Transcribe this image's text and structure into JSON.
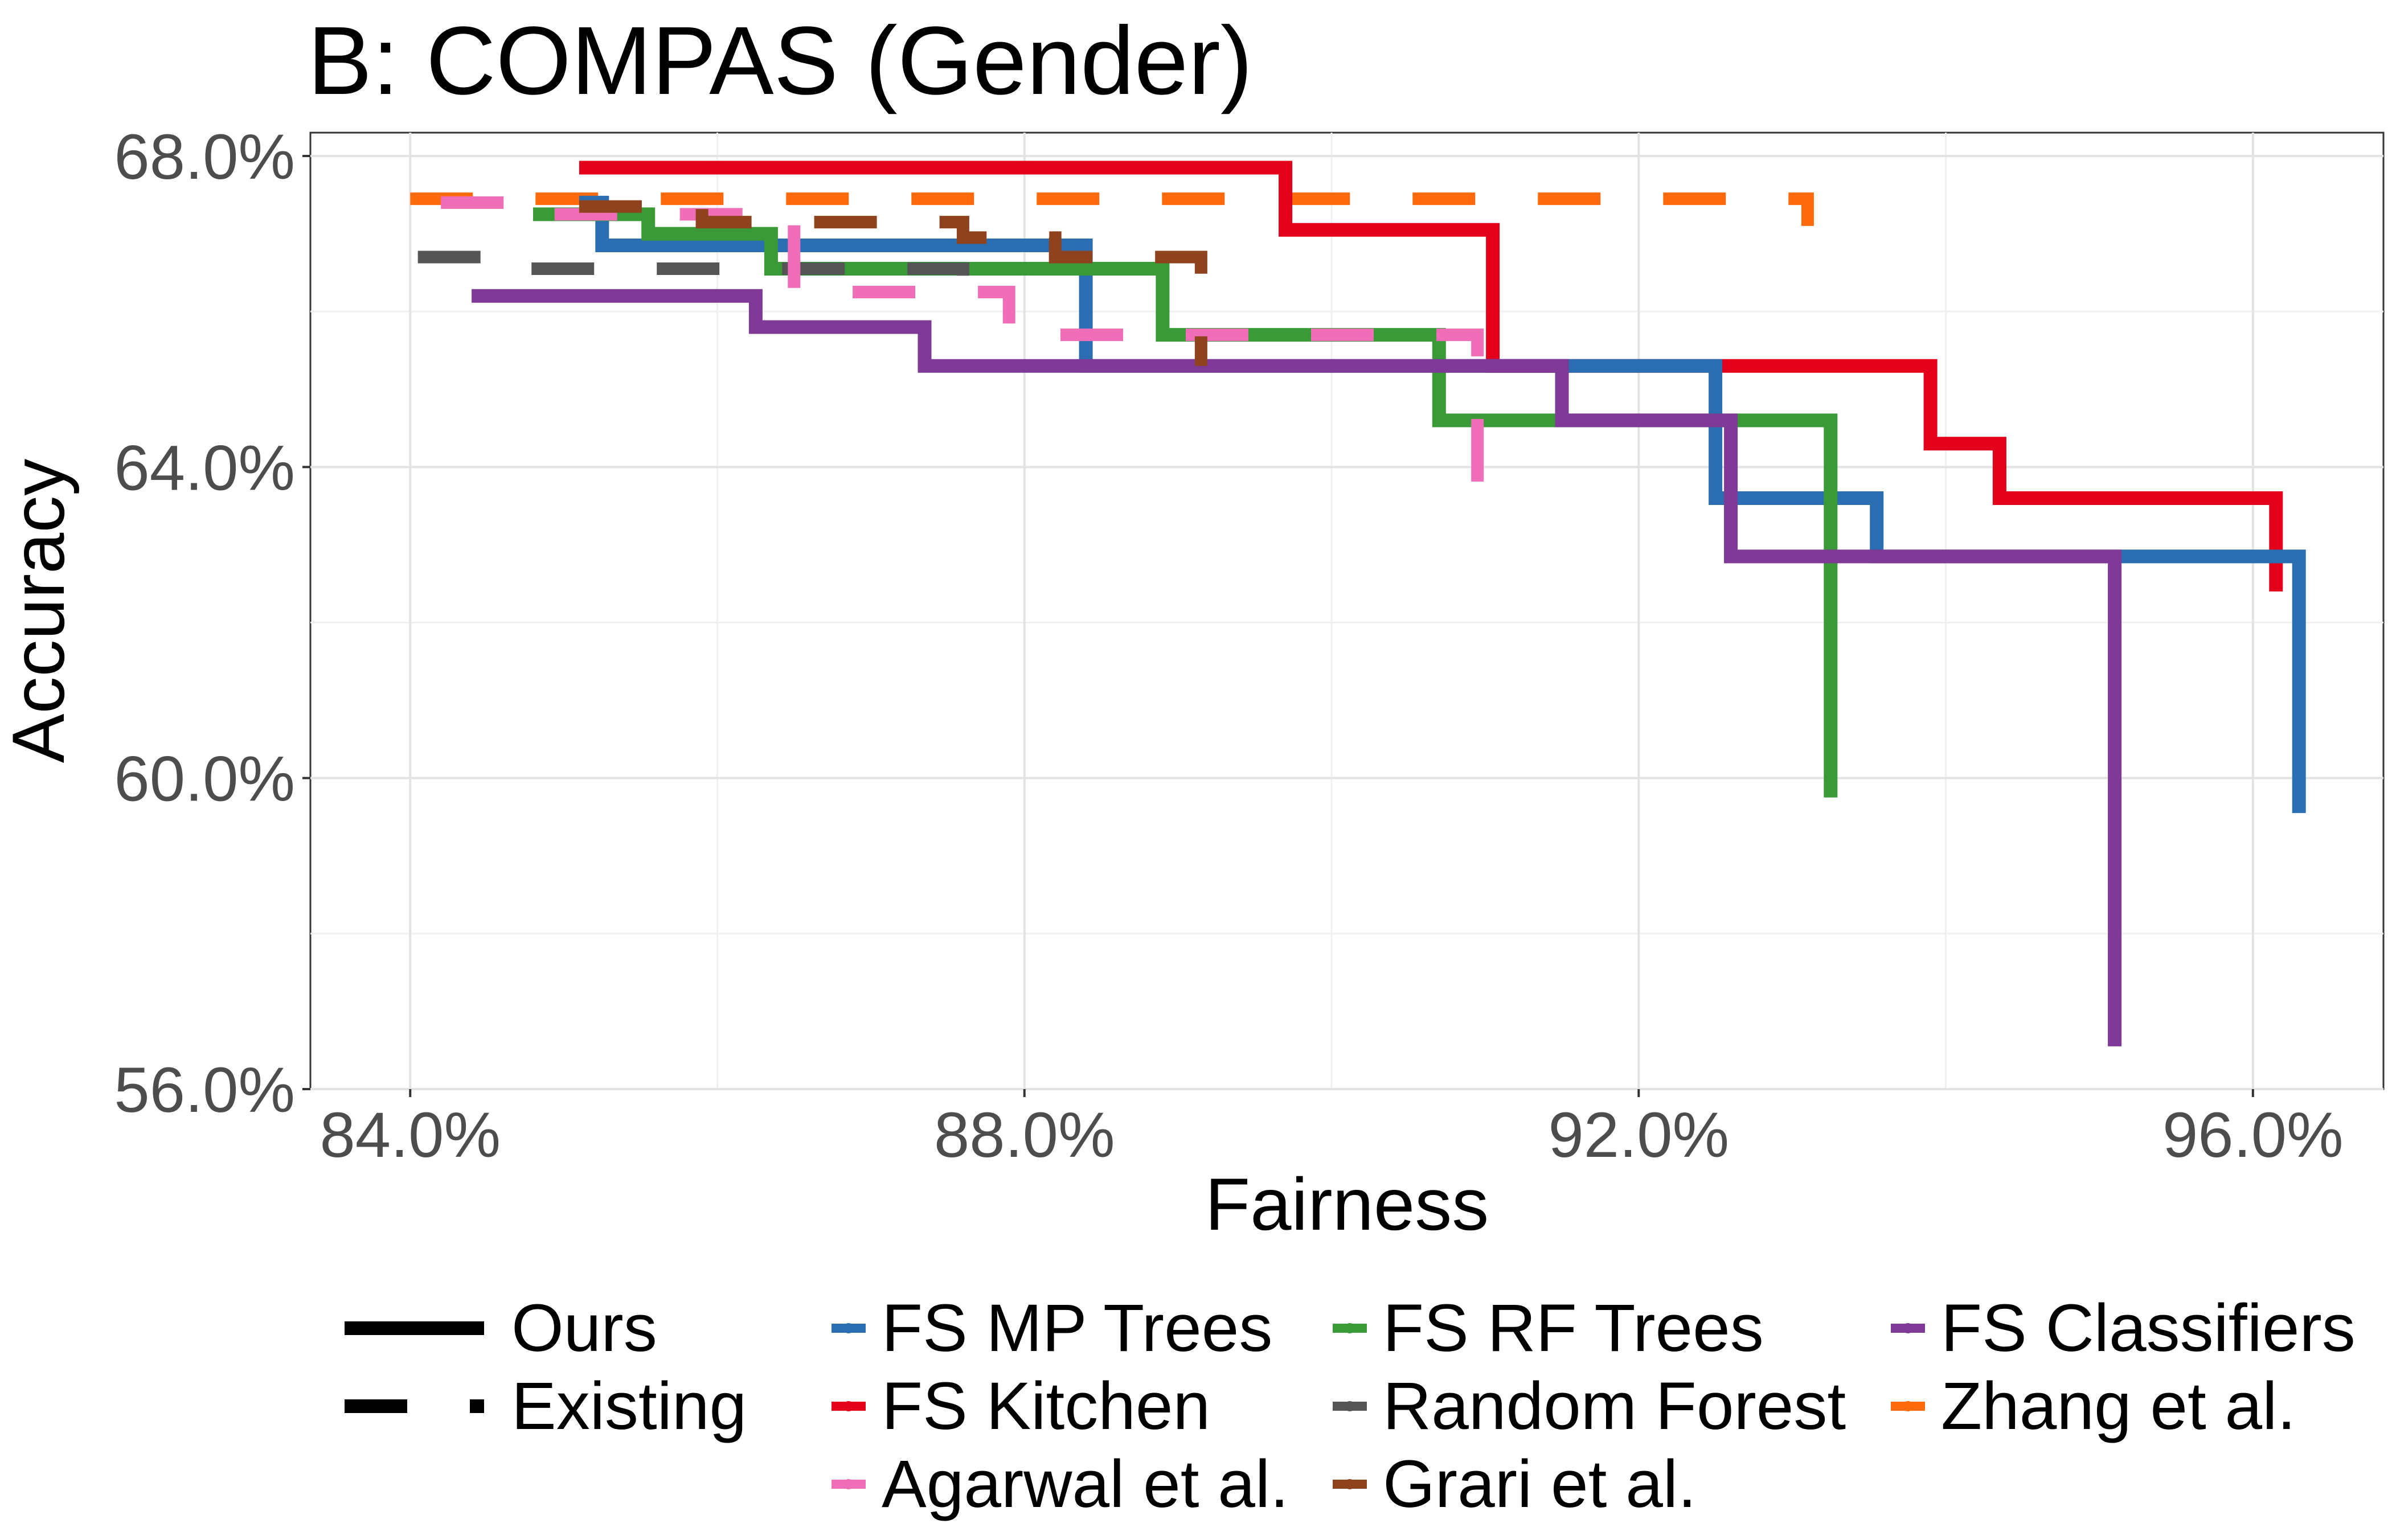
{
  "chart_data": {
    "type": "line",
    "title": "B: COMPAS (Gender)",
    "xlabel": "Fairness",
    "ylabel": "Accuracy",
    "xlim": [
      83.35,
      96.85
    ],
    "ylim": [
      56.0,
      68.3
    ],
    "xticks": [
      84,
      88,
      92,
      96
    ],
    "yticks": [
      56,
      60,
      64,
      68
    ],
    "xtick_labels": [
      "84.0%",
      "88.0%",
      "92.0%",
      "96.0%"
    ],
    "ytick_labels": [
      "56.0%",
      "60.0%",
      "64.0%",
      "68.0%"
    ],
    "grid": true,
    "linetype_legend": [
      {
        "label": "Ours",
        "style": "solid"
      },
      {
        "label": "Existing",
        "style": "dashed"
      }
    ],
    "color_legend": [
      {
        "label": "FS MP Trees",
        "color": "#2c6eb2"
      },
      {
        "label": "FS Kitchen",
        "color": "#e2001a"
      },
      {
        "label": "Agarwal et al.",
        "color": "#ef6eb7"
      },
      {
        "label": "FS RF Trees",
        "color": "#3a9a38"
      },
      {
        "label": "Random Forest",
        "color": "#555555"
      },
      {
        "label": "Grari et al.",
        "color": "#8e421d"
      },
      {
        "label": "FS Classifiers",
        "color": "#7e3a96"
      },
      {
        "label": "Zhang et al.",
        "color": "#ff6a0c"
      }
    ],
    "series": [
      {
        "name": "Zhang et al.",
        "color": "#ff6a0c",
        "style": "dashed",
        "points": [
          [
            84.0,
            67.45
          ],
          [
            93.1,
            67.45
          ],
          [
            93.1,
            67.1
          ]
        ]
      },
      {
        "name": "FS Kitchen",
        "color": "#e2001a",
        "style": "solid",
        "points": [
          [
            85.1,
            67.85
          ],
          [
            89.7,
            67.85
          ],
          [
            89.7,
            67.05
          ],
          [
            91.05,
            67.05
          ],
          [
            91.05,
            65.3
          ],
          [
            93.9,
            65.3
          ],
          [
            93.9,
            64.3
          ],
          [
            94.35,
            64.3
          ],
          [
            94.35,
            63.6
          ],
          [
            96.15,
            63.6
          ],
          [
            96.15,
            62.4
          ]
        ]
      },
      {
        "name": "FS MP Trees",
        "color": "#2c6eb2",
        "style": "solid",
        "points": [
          [
            85.1,
            67.4
          ],
          [
            85.25,
            67.4
          ],
          [
            85.25,
            66.85
          ],
          [
            88.4,
            66.85
          ],
          [
            88.4,
            65.35
          ],
          [
            88.4,
            65.35
          ],
          [
            88.4,
            65.3
          ],
          [
            92.5,
            65.3
          ],
          [
            92.5,
            63.6
          ],
          [
            93.55,
            63.6
          ],
          [
            93.55,
            62.85
          ],
          [
            96.3,
            62.85
          ],
          [
            96.3,
            59.55
          ]
        ]
      },
      {
        "name": "FS RF Trees",
        "color": "#3a9a38",
        "style": "solid",
        "points": [
          [
            84.8,
            67.25
          ],
          [
            85.55,
            67.25
          ],
          [
            85.55,
            67.0
          ],
          [
            86.35,
            67.0
          ],
          [
            86.35,
            66.55
          ],
          [
            88.9,
            66.55
          ],
          [
            88.9,
            65.7
          ],
          [
            90.7,
            65.7
          ],
          [
            90.7,
            64.6
          ],
          [
            93.25,
            64.6
          ],
          [
            93.25,
            59.75
          ]
        ]
      },
      {
        "name": "FS Classifiers",
        "color": "#7e3a96",
        "style": "solid",
        "points": [
          [
            84.4,
            66.2
          ],
          [
            86.25,
            66.2
          ],
          [
            86.25,
            65.8
          ],
          [
            87.35,
            65.8
          ],
          [
            87.35,
            65.3
          ],
          [
            91.5,
            65.3
          ],
          [
            91.5,
            64.6
          ],
          [
            92.6,
            64.6
          ],
          [
            92.6,
            62.85
          ],
          [
            95.1,
            62.85
          ],
          [
            95.1,
            56.55
          ]
        ]
      },
      {
        "name": "Random Forest",
        "color": "#555555",
        "style": "dashed",
        "points": [
          [
            84.05,
            66.7
          ],
          [
            84.6,
            66.7
          ],
          [
            84.6,
            66.55
          ],
          [
            87.6,
            66.55
          ],
          [
            87.6,
            65.7
          ]
        ]
      },
      {
        "name": "Agarwal et al.",
        "color": "#ef6eb7",
        "style": "dashed",
        "points": [
          [
            84.2,
            67.4
          ],
          [
            84.85,
            67.4
          ],
          [
            84.85,
            67.25
          ],
          [
            86.5,
            67.25
          ],
          [
            86.5,
            66.25
          ],
          [
            87.9,
            66.25
          ],
          [
            87.9,
            65.7
          ],
          [
            90.95,
            65.7
          ],
          [
            90.95,
            64.3
          ],
          [
            90.95,
            63.4
          ]
        ]
      },
      {
        "name": "Grari et al.",
        "color": "#8e421d",
        "style": "dashed",
        "points": [
          [
            85.1,
            67.35
          ],
          [
            85.9,
            67.35
          ],
          [
            85.9,
            67.15
          ],
          [
            87.6,
            67.15
          ],
          [
            87.6,
            66.95
          ],
          [
            88.2,
            66.95
          ],
          [
            88.2,
            66.7
          ],
          [
            89.15,
            66.7
          ],
          [
            89.15,
            65.3
          ]
        ]
      }
    ]
  }
}
